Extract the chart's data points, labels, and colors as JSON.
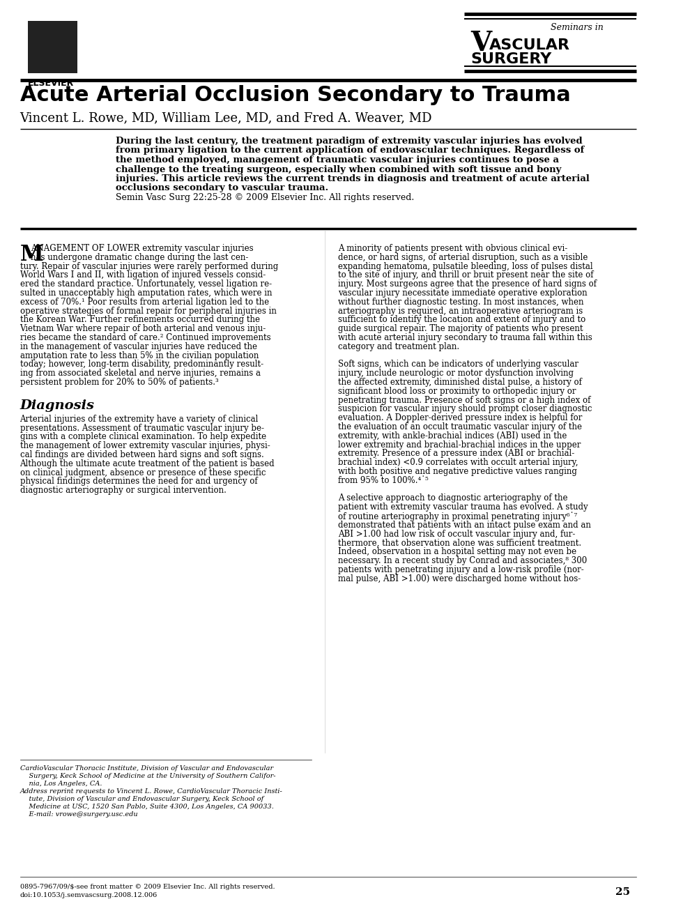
{
  "title": "Acute Arterial Occlusion Secondary to Trauma",
  "authors": "Vincent L. Rowe, MD, William Lee, MD, and Fred A. Weaver, MD",
  "journal_name_line1": "Seminars in",
  "journal_name_line2": "VASCULAR",
  "journal_name_line3": "SURGERY",
  "abstract_text": "During the last century, the treatment paradigm of extremity vascular injuries has evolved\nfrom primary ligation to the current application of endovascular techniques. Regardless of\nthe method employed, management of traumatic vascular injuries continues to pose a\nchallenge to the treating surgeon, especially when combined with soft tissue and bony\ninjuries. This article reviews the current trends in diagnosis and treatment of acute arterial\nocclusions secondary to vascular trauma.\nSemin Vasc Surg 22:25-28 © 2009 Elsevier Inc. All rights reserved.",
  "left_col_text": "MANAGEMENT OF LOWER extremity vascular injuries\nhas undergone dramatic change during the last cen-\ntury. Repair of vascular injuries were rarely performed during\nWorld Wars I and II, with ligation of injured vessels consid-\nered the standard practice. Unfortunately, vessel ligation re-\nsulted in unacceptably high amputation rates, which were in\nexcess of 70%.¹ Poor results from arterial ligation led to the\noperative strategies of formal repair for peripheral injuries in\nthe Korean War. Further refinements occurred during the\nVietnam War where repair of both arterial and venous inju-\nries became the standard of care.² Continued improvements\nin the management of vascular injuries have reduced the\namputation rate to less than 5% in the civilian population\ntoday; however, long-term disability, predominantly result-\ning from associated skeletal and nerve injuries, remains a\npersistent problem for 20% to 50% of patients.³",
  "diagnosis_header": "Diagnosis",
  "diagnosis_text": "Arterial injuries of the extremity have a variety of clinical\npresentations. Assessment of traumatic vascular injury be-\ngins with a complete clinical examination. To help expedite\nthe management of lower extremity vascular injuries, physi-\ncal findings are divided between hard signs and soft signs.\nAlthough the ultimate acute treatment of the patient is based\non clinical judgment, absence or presence of these specific\nphysical findings determines the need for and urgency of\ndiagnostic arteriography or surgical intervention.",
  "right_col_text": "A minority of patients present with obvious clinical evi-\ndence, or hard signs, of arterial disruption, such as a visible\nexpanding hematoma, pulsatile bleeding, loss of pulses distal\nto the site of injury, and thrill or bruit present near the site of\ninjury. Most surgeons agree that the presence of hard signs of\nvascular injury necessitate immediate operative exploration\nwithout further diagnostic testing. In most instances, when\narteriography is required, an intraoperative arteriogram is\nsufficient to identify the location and extent of injury and to\nguide surgical repair. The majority of patients who present\nwith acute arterial injury secondary to trauma fall within this\ncategory and treatment plan.\n\nSoft signs, which can be indicators of underlying vascular\ninjury, include neurologic or motor dysfunction involving\nthe affected extremity, diminished distal pulse, a history of\nsignificant blood loss or proximity to orthopedic injury or\npenetrating trauma. Presence of soft signs or a high index of\nsuspicion for vascular injury should prompt closer diagnostic\nevaluation. A Doppler-derived pressure index is helpful for\nthe evaluation of an occult traumatic vascular injury of the\nextremity, with ankle-brachial indices (ABI) used in the\nlower extremity and brachial-brachial indices in the upper\nextremity. Presence of a pressure index (ABI or brachial-\nbrachial index) <0.9 correlates with occult arterial injury,\nwith both positive and negative predictive values ranging\nfrom 95% to 100%.⁴˙⁵\n\nA selective approach to diagnostic arteriography of the\npatient with extremity vascular trauma has evolved. A study\nof routine arteriography in proximal penetrating injury⁶˙⁷\ndemonstrated that patients with an intact pulse exam and an\nABI >1.00 had low risk of occult vascular injury and, fur-\nthermore, that observation alone was sufficient treatment.\nIndeed, observation in a hospital setting may not even be\nnecessary. In a recent study by Conrad and associates,⁸ 300\npatients with penetrating injury and a low-risk profile (nor-\nmal pulse, ABI >1.00) were discharged home without hos-",
  "footnote_inst": "CardioVascular Thoracic Institute, Division of Vascular and Endovascular\n    Surgery, Keck School of Medicine at the University of Southern Califor-\n    nia, Los Angeles, CA.\nAddress reprint requests to Vincent L. Rowe, CardioVascular Thoracic Insti-\n    tute, Division of Vascular and Endovascular Surgery, Keck School of\n    Medicine at USC, 1520 San Pablo, Suite 4300, Los Angeles, CA 90033.\n    E-mail: vrowe@surgery.usc.edu",
  "footer_text": "0895-7967/09/$-see front matter © 2009 Elsevier Inc. All rights reserved.\ndoi:10.1053/j.semvascsurg.2008.12.006",
  "page_number": "25",
  "bg_color": "#ffffff",
  "text_color": "#000000",
  "header_line_color": "#000000"
}
